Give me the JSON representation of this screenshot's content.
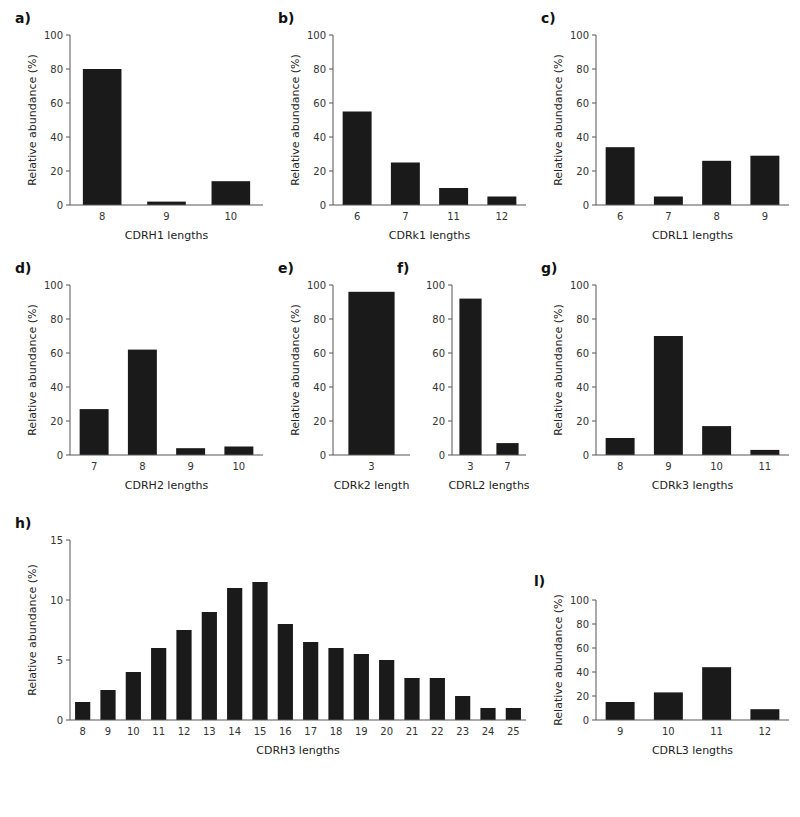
{
  "chart_data": [
    {
      "type": "bar",
      "title": "a)",
      "xlabel": "CDRH1 lengths",
      "ylabel": "Relative abundance (%)",
      "categories": [
        8,
        9,
        10
      ],
      "values": [
        80,
        2,
        14
      ],
      "color": "#1a1a1a",
      "ylim": [
        0,
        100
      ],
      "yticks": [
        0,
        20,
        40,
        60,
        80,
        100
      ]
    },
    {
      "type": "bar",
      "title": "b)",
      "xlabel": "CDRk1 lengths",
      "ylabel": "Relative abundance (%)",
      "categories": [
        6,
        7,
        11,
        12
      ],
      "values": [
        55,
        25,
        10,
        5
      ],
      "color": "#1a1a1a",
      "ylim": [
        0,
        100
      ],
      "yticks": [
        0,
        20,
        40,
        60,
        80,
        100
      ]
    },
    {
      "type": "bar",
      "title": "c)",
      "xlabel": "CDRL1 lengths",
      "ylabel": "Relative abundance (%)",
      "categories": [
        6,
        7,
        8,
        9
      ],
      "values": [
        34,
        5,
        26,
        29
      ],
      "color": "#1a1a1a",
      "ylim": [
        0,
        100
      ],
      "yticks": [
        0,
        20,
        40,
        60,
        80,
        100
      ]
    },
    {
      "type": "bar",
      "title": "d)",
      "xlabel": "CDRH2 lengths",
      "ylabel": "Relative abundance (%)",
      "categories": [
        7,
        8,
        9,
        10
      ],
      "values": [
        27,
        62,
        4,
        5
      ],
      "color": "#1a1a1a",
      "ylim": [
        0,
        100
      ],
      "yticks": [
        0,
        20,
        40,
        60,
        80,
        100
      ]
    },
    {
      "type": "bar",
      "title": "e)",
      "xlabel": "CDRk2 length",
      "ylabel": "Relative abundance (%)",
      "categories": [
        3
      ],
      "values": [
        96
      ],
      "color": "#1a1a1a",
      "ylim": [
        0,
        100
      ],
      "yticks": [
        0,
        20,
        40,
        60,
        80,
        100
      ]
    },
    {
      "type": "bar",
      "title": "f)",
      "xlabel": "CDRL2 lengths",
      "categories": [
        3,
        7
      ],
      "values": [
        92,
        7
      ],
      "color": "#1a1a1a",
      "ylim": [
        0,
        100
      ],
      "yticks": [
        0,
        20,
        40,
        60,
        80,
        100
      ]
    },
    {
      "type": "bar",
      "title": "g)",
      "xlabel": "CDRk3 lengths",
      "ylabel": "Relative abundance (%)",
      "categories": [
        8,
        9,
        10,
        11
      ],
      "values": [
        10,
        70,
        17,
        3
      ],
      "color": "#1a1a1a",
      "ylim": [
        0,
        100
      ],
      "yticks": [
        0,
        20,
        40,
        60,
        80,
        100
      ]
    },
    {
      "type": "bar",
      "title": "h)",
      "xlabel": "CDRH3 lengths",
      "ylabel": "Relative abundance (%)",
      "categories": [
        8,
        9,
        10,
        11,
        12,
        13,
        14,
        15,
        16,
        17,
        18,
        19,
        20,
        21,
        22,
        23,
        24,
        25
      ],
      "values": [
        1.5,
        2.5,
        4.0,
        6.0,
        7.5,
        9.0,
        11.0,
        11.5,
        8.0,
        6.5,
        6.0,
        5.5,
        5.0,
        3.5,
        3.5,
        2.0,
        1.0,
        1.0
      ],
      "color": "#1a1a1a",
      "ylim": [
        0,
        15
      ],
      "yticks": [
        0,
        5,
        10,
        15
      ]
    },
    {
      "type": "bar",
      "title": "l)",
      "xlabel": "CDRL3 lengths",
      "ylabel": "Relative abundance (%)",
      "categories": [
        9,
        10,
        11,
        12
      ],
      "values": [
        15,
        23,
        44,
        9
      ],
      "color": "#1a1a1a",
      "ylim": [
        0,
        100
      ],
      "yticks": [
        0,
        20,
        40,
        60,
        80,
        100
      ]
    }
  ]
}
